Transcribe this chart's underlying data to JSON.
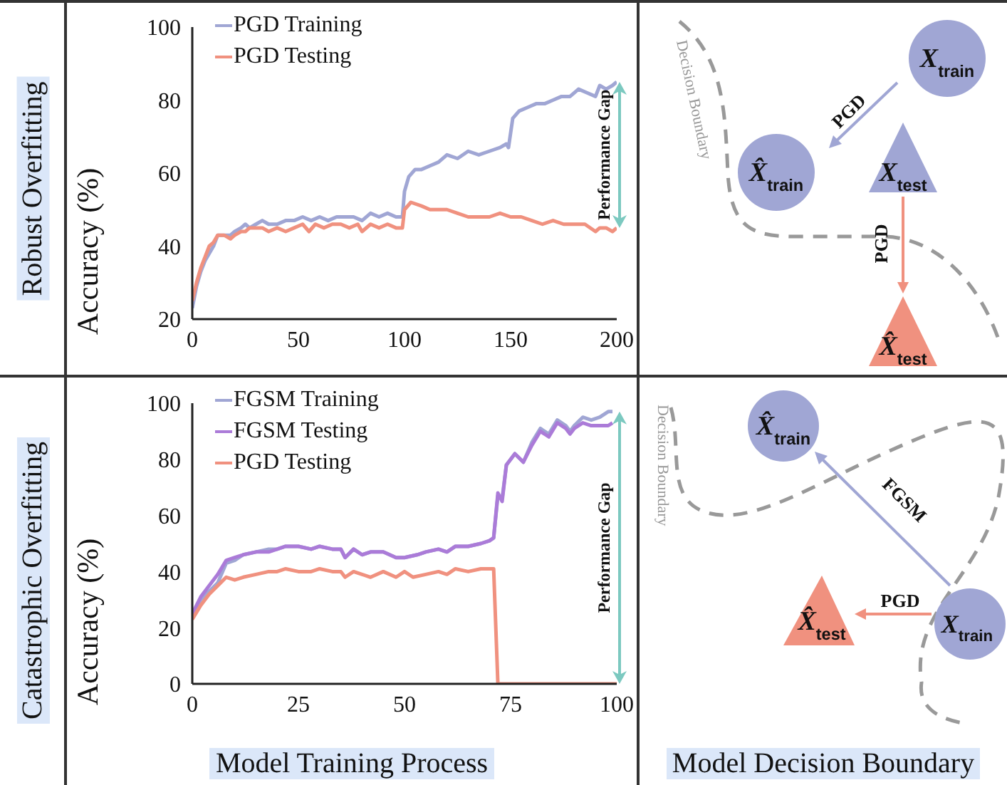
{
  "chart_data": [
    {
      "type": "line",
      "title": "Robust Overfitting",
      "ylabel": "Accuracy (%)",
      "xlim": [
        0,
        200
      ],
      "xticks": [
        0,
        50,
        100,
        150,
        200
      ],
      "ylim": [
        20,
        100
      ],
      "yticks": [
        20,
        40,
        60,
        80,
        100
      ],
      "grid": false,
      "legend": "top left",
      "marker": "none",
      "line_style": "solid",
      "annotations": [
        "Performance Gap"
      ],
      "series": [
        {
          "name": "PGD Training",
          "color": "#a0a6d4",
          "x": [
            0,
            2,
            4,
            6,
            8,
            10,
            12,
            15,
            18,
            20,
            23,
            25,
            27,
            30,
            33,
            36,
            40,
            44,
            48,
            52,
            56,
            60,
            64,
            68,
            72,
            76,
            80,
            84,
            88,
            92,
            96,
            99,
            100,
            102,
            105,
            108,
            112,
            116,
            120,
            125,
            130,
            135,
            140,
            145,
            148,
            149,
            151,
            154,
            158,
            162,
            166,
            170,
            174,
            178,
            182,
            186,
            190,
            192,
            195,
            198,
            200
          ],
          "values": [
            23,
            29,
            33,
            36,
            38,
            40,
            43,
            43,
            43,
            44,
            45,
            46,
            45,
            46,
            47,
            46,
            46,
            47,
            47,
            48,
            47,
            48,
            47,
            48,
            48,
            48,
            47,
            49,
            48,
            49,
            48,
            48,
            55,
            59,
            61,
            61,
            62,
            63,
            65,
            64,
            66,
            65,
            66,
            67,
            68,
            67,
            75,
            77,
            78,
            79,
            79,
            80,
            81,
            81,
            83,
            82,
            81,
            84,
            83,
            84,
            85
          ]
        },
        {
          "name": "PGD Testing",
          "color": "#f0917f",
          "x": [
            0,
            2,
            4,
            6,
            8,
            10,
            12,
            15,
            18,
            20,
            23,
            25,
            27,
            30,
            33,
            36,
            40,
            44,
            48,
            52,
            55,
            58,
            62,
            66,
            70,
            74,
            78,
            80,
            84,
            88,
            92,
            96,
            99,
            100,
            103,
            108,
            112,
            116,
            120,
            125,
            130,
            135,
            140,
            145,
            150,
            155,
            160,
            165,
            170,
            175,
            180,
            185,
            190,
            192,
            195,
            198,
            200
          ],
          "values": [
            25,
            30,
            34,
            37,
            40,
            41,
            43,
            43,
            42,
            43,
            44,
            44,
            45,
            45,
            45,
            44,
            45,
            44,
            45,
            46,
            44,
            46,
            45,
            46,
            46,
            45,
            46,
            44,
            46,
            45,
            46,
            45,
            45,
            50,
            52,
            51,
            50,
            50,
            50,
            49,
            48,
            48,
            48,
            49,
            48,
            48,
            47,
            46,
            47,
            46,
            46,
            46,
            44,
            45,
            45,
            44,
            45
          ]
        }
      ]
    },
    {
      "type": "other",
      "annotations": [
        "Decision Boundary",
        "X$_{train}$",
        "PGD",
        "X̂$_{train}$",
        "X$_{test}$",
        "PGD",
        "X̂$_{test}$"
      ]
    },
    {
      "type": "line",
      "title": "Catastrophic Overfitting",
      "xlabel": "Model Training Process",
      "ylabel": "Accuracy (%)",
      "xlim": [
        0,
        100
      ],
      "xticks": [
        0,
        25,
        50,
        75,
        100
      ],
      "ylim": [
        0,
        100
      ],
      "yticks": [
        0,
        20,
        40,
        60,
        80,
        100
      ],
      "grid": false,
      "legend": "top left",
      "marker": "none",
      "line_style": "solid",
      "annotations": [
        "Performance Gap"
      ],
      "series": [
        {
          "name": "FGSM Training",
          "color": "#a0a6d4",
          "x": [
            0,
            2,
            4,
            6,
            8,
            10,
            12,
            15,
            18,
            20,
            22,
            25,
            28,
            30,
            33,
            35,
            36,
            38,
            40,
            42,
            45,
            48,
            50,
            53,
            55,
            58,
            60,
            62,
            65,
            68,
            70,
            71,
            72,
            73,
            74,
            76,
            78,
            80,
            82,
            84,
            86,
            88,
            89,
            90,
            92,
            94,
            96,
            98,
            99
          ],
          "values": [
            24,
            30,
            33,
            36,
            43,
            44,
            46,
            47,
            48,
            48,
            49,
            49,
            48,
            49,
            48,
            48,
            45,
            48,
            46,
            47,
            47,
            45,
            45,
            46,
            47,
            48,
            47,
            49,
            49,
            50,
            51,
            52,
            67,
            66,
            78,
            82,
            79,
            86,
            91,
            89,
            94,
            92,
            90,
            92,
            95,
            94,
            95,
            97,
            97
          ]
        },
        {
          "name": "FGSM Testing",
          "color": "#ab7bd8",
          "x": [
            0,
            2,
            4,
            6,
            8,
            10,
            12,
            15,
            18,
            20,
            22,
            25,
            28,
            30,
            33,
            35,
            36,
            38,
            40,
            42,
            45,
            48,
            50,
            53,
            55,
            58,
            60,
            62,
            65,
            68,
            70,
            71,
            72,
            73,
            74,
            76,
            78,
            80,
            82,
            84,
            86,
            88,
            89,
            90,
            92,
            94,
            96,
            98,
            99
          ],
          "values": [
            25,
            31,
            35,
            39,
            44,
            45,
            46,
            47,
            47,
            48,
            49,
            49,
            48,
            49,
            48,
            48,
            45,
            48,
            46,
            47,
            47,
            45,
            45,
            46,
            47,
            48,
            47,
            49,
            49,
            50,
            51,
            52,
            68,
            65,
            78,
            82,
            79,
            85,
            90,
            88,
            93,
            91,
            89,
            91,
            93,
            92,
            92,
            92,
            93
          ]
        },
        {
          "name": "PGD Testing",
          "color": "#f0917f",
          "x": [
            0,
            2,
            4,
            6,
            8,
            10,
            12,
            15,
            18,
            20,
            22,
            25,
            28,
            30,
            33,
            35,
            36,
            38,
            40,
            42,
            45,
            48,
            50,
            52,
            55,
            58,
            60,
            62,
            65,
            68,
            70,
            71,
            72,
            80,
            90,
            100
          ],
          "values": [
            23,
            28,
            32,
            35,
            38,
            37,
            38,
            39,
            40,
            40,
            41,
            40,
            40,
            41,
            40,
            40,
            38,
            40,
            39,
            38,
            40,
            38,
            40,
            38,
            39,
            40,
            39,
            41,
            40,
            41,
            41,
            41,
            0,
            0,
            0,
            0
          ]
        }
      ]
    },
    {
      "type": "other",
      "xlabel": "Model Decision Boundary",
      "annotations": [
        "Decision Boundary",
        "X̂$_{train}$",
        "FGSM",
        "PGD",
        "X̂$_{test}$",
        "X$_{train}$"
      ]
    }
  ]
}
